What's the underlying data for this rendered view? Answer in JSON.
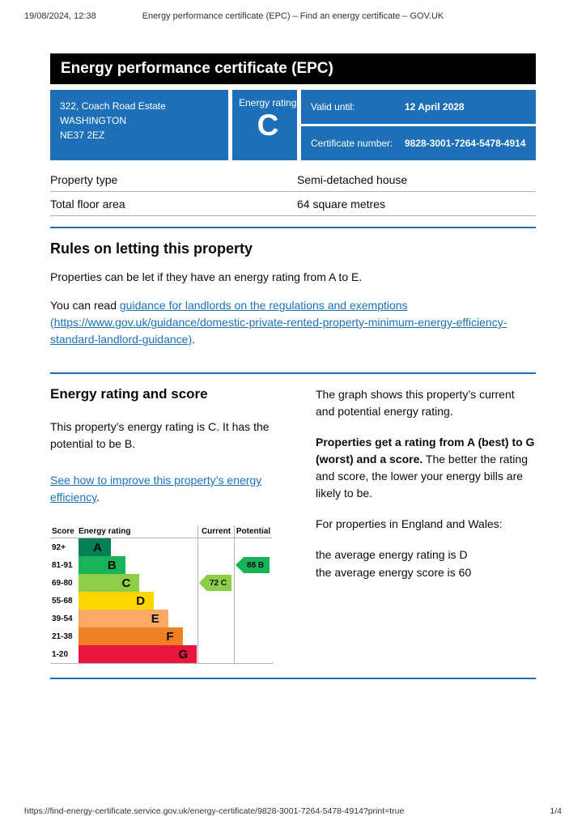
{
  "print_header": {
    "timestamp": "19/08/2024, 12:38",
    "title": "Energy performance certificate (EPC) – Find an energy certificate – GOV.UK"
  },
  "banner": {
    "title": "Energy performance certificate (EPC)"
  },
  "summary": {
    "address_lines": [
      "322, Coach Road Estate",
      "WASHINGTON",
      "NE37 2EZ"
    ],
    "rating_label": "Energy rating",
    "rating_value": "C",
    "valid_until_label": "Valid until:",
    "valid_until_value": "12 April 2028",
    "cert_number_label": "Certificate number:",
    "cert_number_value": "9828-3001-7264-5478-4914"
  },
  "details": {
    "rows": [
      {
        "label": "Property type",
        "value": "Semi-detached house"
      },
      {
        "label": "Total floor area",
        "value": "64 square metres"
      }
    ]
  },
  "rules": {
    "heading": "Rules on letting this property",
    "para1": "Properties can be let if they have an energy rating from A to E.",
    "para2_prefix": "You can read ",
    "para2_link": "guidance for landlords on the regulations and exemptions (https://www.gov.uk/guidance/domestic-private-rented-property-minimum-energy-efficiency-standard-landlord-guidance)",
    "para2_suffix": "."
  },
  "rating_section": {
    "heading": "Energy rating and score",
    "intro": "This property’s energy rating is C. It has the potential to be B.",
    "improve_link": "See how to improve this property’s energy efficiency",
    "improve_suffix": ".",
    "right_para1": "The graph shows this property’s current and potential energy rating.",
    "right_para2_bold": "Properties get a rating from A (best) to G (worst) and a score.",
    "right_para2_rest": " The better the rating and score, the lower your energy bills are likely to be.",
    "right_para3": "For properties in England and Wales:",
    "avg_line1": "the average energy rating is D",
    "avg_line2": "the average energy score is 60"
  },
  "chart_data": {
    "type": "epc-bands",
    "columns": [
      "Score",
      "Energy rating",
      "Current",
      "Potential"
    ],
    "bands": [
      {
        "score": "92+",
        "letter": "A",
        "color": "#008054"
      },
      {
        "score": "81-91",
        "letter": "B",
        "color": "#19b459"
      },
      {
        "score": "69-80",
        "letter": "C",
        "color": "#8dce46"
      },
      {
        "score": "55-68",
        "letter": "D",
        "color": "#ffd500"
      },
      {
        "score": "39-54",
        "letter": "E",
        "color": "#fcaa65"
      },
      {
        "score": "21-38",
        "letter": "F",
        "color": "#ef8023"
      },
      {
        "score": "1-20",
        "letter": "G",
        "color": "#e9153b"
      }
    ],
    "current": {
      "value": 72,
      "letter": "C",
      "band_index": 2,
      "color": "#8dce46"
    },
    "potential": {
      "value": 88,
      "letter": "B",
      "band_index": 1,
      "color": "#19b459"
    }
  },
  "colors": {
    "accent_blue": "#1d70b8",
    "banner_black": "#000000",
    "border_gray": "#b1b4b6"
  },
  "footer": {
    "url": "https://find-energy-certificate.service.gov.uk/energy-certificate/9828-3001-7264-5478-4914?print=true",
    "page": "1/4"
  }
}
